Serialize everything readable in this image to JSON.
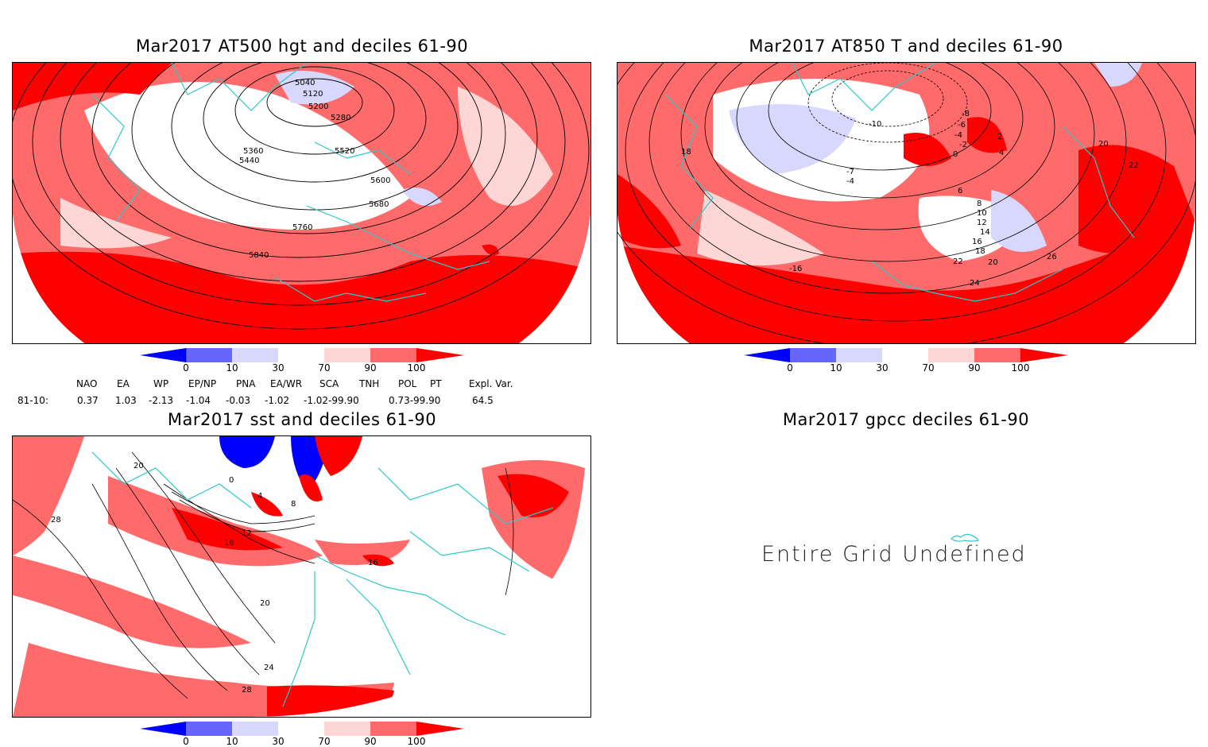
{
  "panels": {
    "z500": {
      "title": "Mar2017 AT500 hgt and deciles 61-90",
      "contours": [
        "5040",
        "5120",
        "5200",
        "5280",
        "5360",
        "5440",
        "5520",
        "5600",
        "5680",
        "5760",
        "5840"
      ]
    },
    "t850": {
      "title": "Mar2017 AT850 T and deciles 61-90",
      "contours": [
        "-8",
        "-6",
        "-4",
        "-2",
        "0",
        "2",
        "4",
        "6",
        "8",
        "10",
        "12",
        "14",
        "16",
        "18",
        "20",
        "22",
        "24",
        "26",
        "18",
        "20",
        "22",
        "-10",
        "-16",
        "-7",
        "-4"
      ]
    },
    "sst": {
      "title": "Mar2017 sst and deciles 61-90",
      "contours": [
        "0",
        "4",
        "8",
        "12",
        "16",
        "20",
        "24",
        "28",
        "28",
        "20",
        "16"
      ]
    },
    "gpcc": {
      "title": "Mar2017 gpcc deciles 61-90",
      "message": "Entire Grid Undefined"
    }
  },
  "colorbar": {
    "labels": [
      "0",
      "10",
      "30",
      "70",
      "90",
      "100"
    ],
    "colors": [
      "#0000ff",
      "#6666ff",
      "#d8d8ff",
      "#ffffff",
      "#ffd6d6",
      "#ff6b6b",
      "#ff0000"
    ]
  },
  "indices": {
    "headers": [
      "NAO",
      "EA",
      "WP",
      "EP/NP",
      "PNA",
      "EA/WR",
      "SCA",
      "TNH",
      "POL",
      "PT",
      "Expl. Var."
    ],
    "row_label": "81-10:",
    "values": [
      "0.37",
      "1.03",
      "-2.13",
      "-1.04",
      "-0.03",
      "-1.02",
      "-1.02-99.90",
      "0.73-99.90",
      "64.5"
    ]
  },
  "colors": {
    "coast": "#2ec8c8",
    "strong_red": "#ff0000",
    "mid_red": "#ff6b6b",
    "light_red": "#ffd6d6",
    "light_blue": "#d8d8ff"
  }
}
